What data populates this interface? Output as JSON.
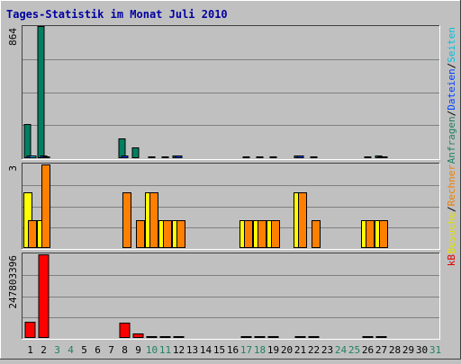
{
  "chart_data": [
    {
      "type": "bar",
      "title": "Tages-Statistik im Monat Juli 2010",
      "days": [
        "1",
        "2",
        "3",
        "4",
        "5",
        "6",
        "7",
        "8",
        "9",
        "10",
        "11",
        "12",
        "13",
        "14",
        "15",
        "16",
        "17",
        "18",
        "19",
        "20",
        "21",
        "22",
        "23",
        "24",
        "25",
        "26",
        "27",
        "28",
        "29",
        "30",
        "31"
      ],
      "weekend_days": [
        "3",
        "4",
        "10",
        "11",
        "17",
        "18",
        "24",
        "25",
        "31"
      ],
      "colors": {
        "title": "#0000a0",
        "weekday_label": "#000000",
        "weekend_label": "#208060",
        "plot_bg": "#c0c0c0",
        "grid": "#808080"
      },
      "panels": [
        {
          "name": "requests",
          "y_max": 864,
          "y_max_label": "864",
          "legend": [
            {
              "text": "Anfragen",
              "color": "#208060"
            },
            {
              "text": "Dateien",
              "color": "#0040ff"
            },
            {
              "text": "Seiten",
              "color": "#00c0e0"
            }
          ],
          "series": [
            {
              "name": "Anfragen",
              "color": "#008060",
              "values": [
                224,
                864,
                0,
                0,
                0,
                0,
                0,
                130,
                70,
                0,
                0,
                15,
                0,
                0,
                0,
                0,
                0,
                0,
                0,
                0,
                15,
                0,
                0,
                0,
                0,
                0,
                15,
                0,
                0,
                0,
                0
              ]
            },
            {
              "name": "Dateien",
              "color": "#0040ff",
              "values": [
                20,
                15,
                0,
                0,
                0,
                0,
                0,
                15,
                0,
                3,
                3,
                20,
                0,
                0,
                0,
                0,
                3,
                3,
                3,
                0,
                20,
                3,
                0,
                0,
                0,
                3,
                8,
                0,
                0,
                0,
                0
              ]
            },
            {
              "name": "Seiten",
              "color": "#00c0e0",
              "values": [
                20,
                10,
                0,
                0,
                0,
                0,
                0,
                0,
                0,
                0,
                0,
                0,
                0,
                0,
                0,
                0,
                0,
                0,
                0,
                0,
                0,
                0,
                0,
                0,
                0,
                0,
                10,
                0,
                0,
                0,
                0
              ]
            }
          ]
        },
        {
          "name": "visits",
          "y_max": 3,
          "y_max_label": "3",
          "legend": [
            {
              "text": "Besuche",
              "color": "#e0e000"
            },
            {
              "text": "Rechner",
              "color": "#f08000"
            }
          ],
          "series": [
            {
              "name": "Besuche",
              "color": "#ffff00",
              "values": [
                2,
                1,
                0,
                0,
                0,
                0,
                0,
                0,
                0,
                2,
                1,
                1,
                0,
                0,
                0,
                0,
                1,
                1,
                1,
                0,
                2,
                0,
                0,
                0,
                0,
                1,
                1,
                0,
                0,
                0,
                0
              ]
            },
            {
              "name": "Rechner",
              "color": "#ff8000",
              "values": [
                1,
                3,
                0,
                0,
                0,
                0,
                0,
                2,
                1,
                2,
                1,
                1,
                0,
                0,
                0,
                0,
                1,
                1,
                1,
                0,
                2,
                1,
                0,
                0,
                0,
                1,
                1,
                0,
                0,
                0,
                0
              ]
            }
          ]
        },
        {
          "name": "kbytes",
          "y_max": 247803396,
          "y_max_label": "247803396",
          "legend": [
            {
              "text": "kB",
              "color": "#e00000"
            }
          ],
          "series": [
            {
              "name": "kB",
              "color": "#ff0000",
              "values": [
                49000000,
                247803396,
                0,
                0,
                0,
                0,
                0,
                44000000,
                14000000,
                1000000,
                1000000,
                1000000,
                0,
                0,
                0,
                0,
                1000000,
                1000000,
                1000000,
                0,
                1000000,
                1000000,
                0,
                0,
                0,
                1000000,
                1000000,
                0,
                0,
                0,
                0
              ]
            }
          ]
        }
      ]
    }
  ]
}
